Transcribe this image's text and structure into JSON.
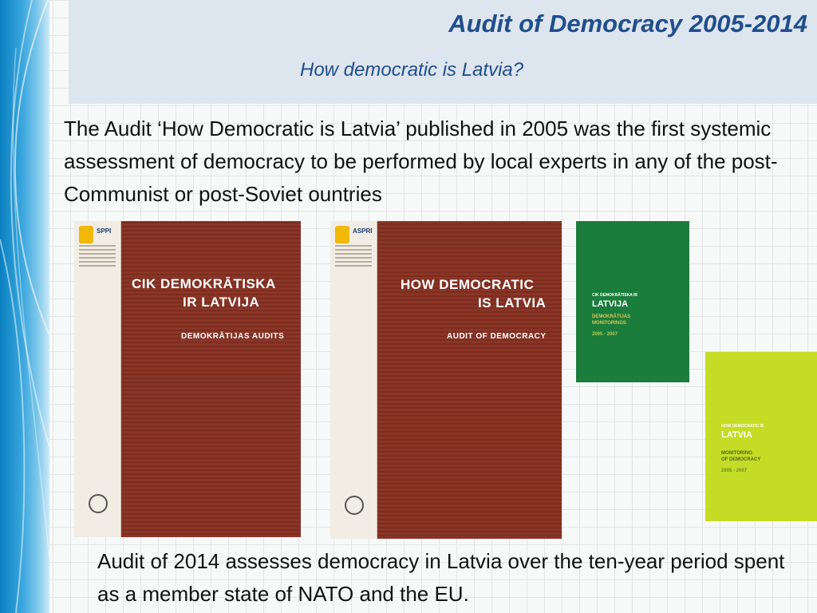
{
  "header": {
    "title": "Audit of Democracy 2005-2014",
    "subtitle": "How democratic is Latvia?"
  },
  "body": {
    "intro": "The Audit ‘How Democratic is Latvia’ published in 2005 was the first systemic assessment of democracy to be performed by local experts in any of the post-Communist or post-Soviet ountries",
    "outro": "Audit of 2014 assesses democracy in Latvia over the ten-year period spent as a member state of NATO and the EU."
  },
  "books": {
    "book1": {
      "org": "SPPI",
      "title_line1": "CIK DEMOKRĀTISKA",
      "title_line2": "IR LATVIJA",
      "subtitle": "DEMOKRĀTIJAS AUDITS"
    },
    "book2": {
      "org": "ASPRI",
      "title_line1": "HOW DEMOCRATIC",
      "title_line2": "IS LATVIA",
      "subtitle": "AUDIT OF DEMOCRACY"
    },
    "book3": {
      "small": "CIK DEMOKRĀTISKA IR",
      "title": "LATVIJA",
      "sub1": "DEMOKRĀTIJAS",
      "sub2": "MONITORINGS",
      "years": "2005 - 2007"
    },
    "book4": {
      "small": "HOW DEMOCRATIC IS",
      "title": "LATVIA",
      "sub1": "MONITORING",
      "sub2": "OF DEMOCRACY",
      "years": "2005 - 2007"
    }
  },
  "colors": {
    "accent": "#1f4e8c",
    "book_red": "#7c2d20",
    "book_green": "#1b7d3b",
    "book_yellow": "#c4dc25"
  }
}
